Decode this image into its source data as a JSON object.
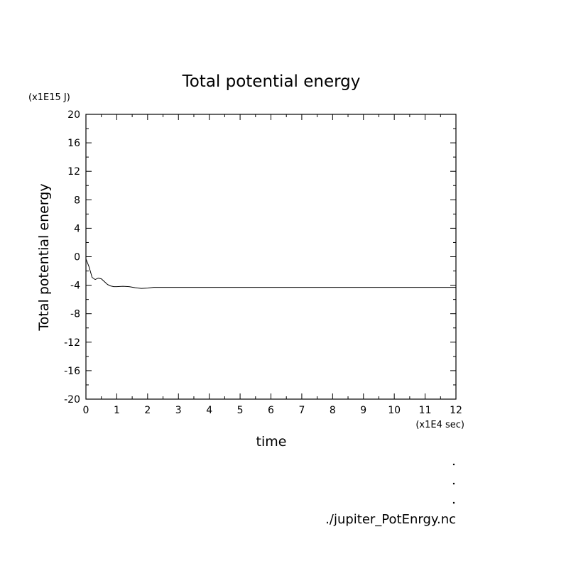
{
  "chart_data": {
    "type": "line",
    "title": "Total potential energy",
    "xlabel": "time",
    "ylabel": "Total potential energy",
    "x_unit": "(x1E4 sec)",
    "y_unit": "(x1E15 J)",
    "xlim": [
      0,
      12
    ],
    "ylim": [
      -20,
      20
    ],
    "x_ticks": [
      0,
      1,
      2,
      3,
      4,
      5,
      6,
      7,
      8,
      9,
      10,
      11,
      12
    ],
    "y_ticks": [
      -20,
      -16,
      -12,
      -8,
      -4,
      0,
      4,
      8,
      12,
      16,
      20
    ],
    "grid": false,
    "series": [
      {
        "x": [
          0,
          0.1,
          0.2,
          0.3,
          0.4,
          0.5,
          0.6,
          0.7,
          0.8,
          0.9,
          1.0,
          1.2,
          1.4,
          1.6,
          1.8,
          2.0,
          2.2,
          3,
          4,
          6,
          8,
          10,
          12
        ],
        "values": [
          -0.3,
          -1.4,
          -2.9,
          -3.2,
          -3.0,
          -3.1,
          -3.5,
          -3.9,
          -4.1,
          -4.2,
          -4.2,
          -4.15,
          -4.2,
          -4.35,
          -4.45,
          -4.4,
          -4.3,
          -4.3,
          -4.3,
          -4.3,
          -4.3,
          -4.3,
          -4.3
        ]
      }
    ]
  },
  "footer": {
    "filename": "./jupiter_PotEnrgy.nc"
  }
}
